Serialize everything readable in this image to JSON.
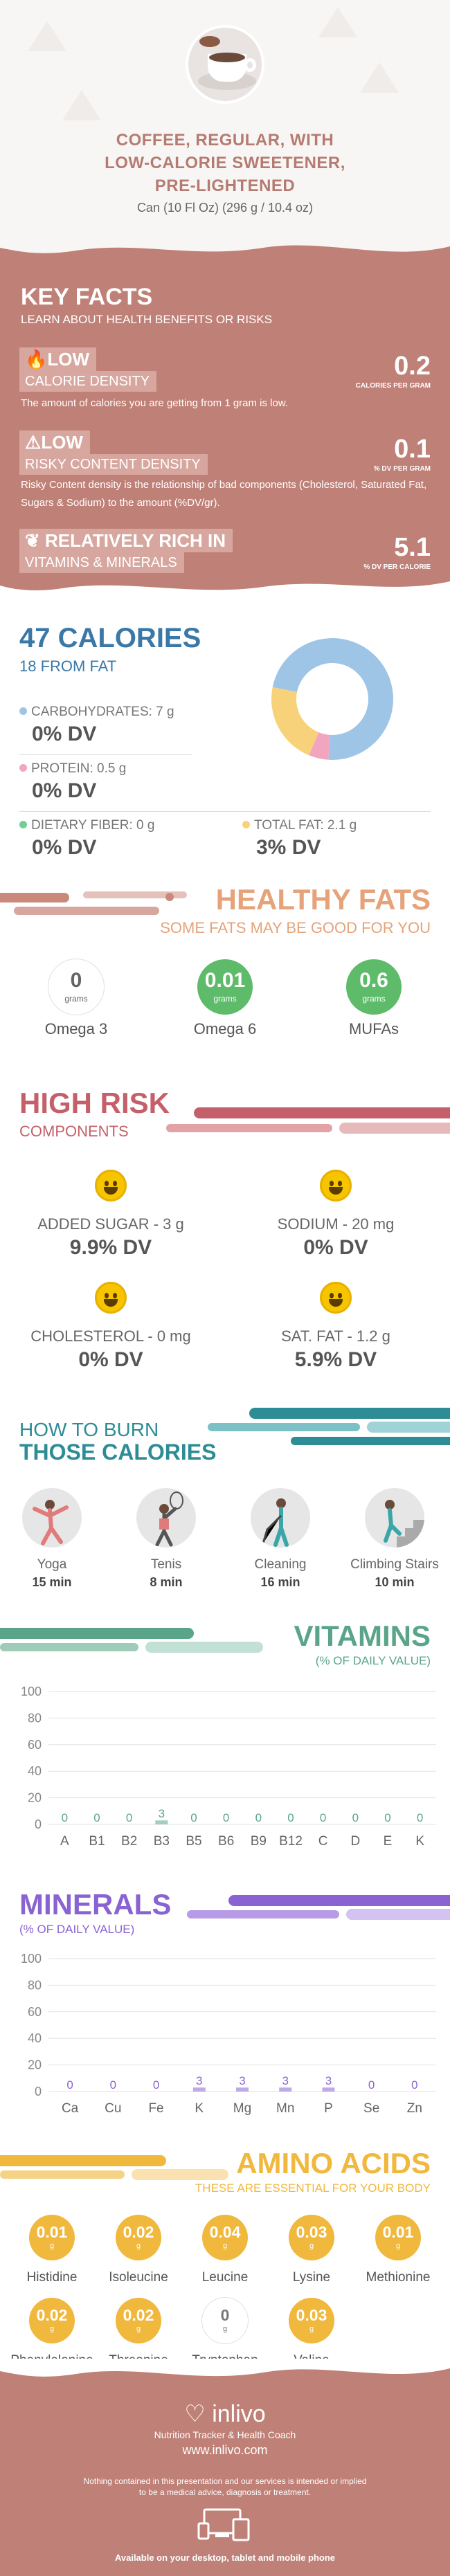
{
  "header": {
    "title_lines": [
      "COFFEE, REGULAR, WITH",
      "LOW-CALORIE SWEETENER,",
      "PRE-LIGHTENED"
    ],
    "serving": "Can (10 Fl Oz) (296 g / 10.4 oz)"
  },
  "key_facts": {
    "title": "KEY FACTS",
    "subtitle": "LEARN ABOUT HEALTH BENEFITS OR RISKS",
    "calorie_density": {
      "level": "LOW",
      "label": "CALORIE DENSITY",
      "value": "0.2",
      "unit": "CALORIES PER GRAM",
      "description": "The amount of calories you are getting from 1 gram is low."
    },
    "risky_content": {
      "level": "LOW",
      "label": "RISKY CONTENT DENSITY",
      "value": "0.1",
      "unit": "% DV PER GRAM",
      "description": "Risky Content density is the relationship of bad components (Cholesterol, Saturated Fat, Sugars & Sodium) to the amount (%DV/gr)."
    },
    "vitamins_minerals": {
      "level": "RELATIVELY RICH  IN",
      "label": "VITAMINS & MINERALS",
      "value": "5.1",
      "unit": "% DV PER CALORIE"
    }
  },
  "calories": {
    "title": "47 CALORIES",
    "from_fat": "18 FROM FAT",
    "carbohydrates": {
      "label": "CARBOHYDRATES: 7 g",
      "dv": "0% DV",
      "color": "#9ec5e6"
    },
    "protein": {
      "label": "PROTEIN: 0.5 g",
      "dv": "0% DV",
      "color": "#f2a5be"
    },
    "fiber": {
      "label": "DIETARY FIBER: 0 g",
      "dv": "0% DV",
      "color": "#6fcf97"
    },
    "fat": {
      "label": "TOTAL FAT: 2.1 g",
      "dv": "3% DV",
      "color": "#f7d27a"
    }
  },
  "chart_data": [
    {
      "type": "pie",
      "labels": [
        "Carbohydrates",
        "Protein",
        "Total Fat"
      ],
      "values": [
        7,
        0.5,
        2.1
      ],
      "colors": [
        "#9ec5e6",
        "#f2a5be",
        "#f7d27a"
      ]
    },
    {
      "type": "bar",
      "title": "VITAMINS",
      "subtitle": "(% OF DAILY VALUE)",
      "categories": [
        "A",
        "B1",
        "B2",
        "B3",
        "B5",
        "B6",
        "B9",
        "B12",
        "C",
        "D",
        "E",
        "K"
      ],
      "values": [
        0,
        0,
        0,
        3,
        0,
        0,
        0,
        0,
        0,
        0,
        0,
        0
      ],
      "ylim": [
        0,
        100
      ],
      "yticks": [
        0,
        20,
        40,
        60,
        80,
        100
      ],
      "color": "#5aa58a"
    },
    {
      "type": "bar",
      "title": "MINERALS",
      "subtitle": "(% OF DAILY VALUE)",
      "categories": [
        "Ca",
        "Cu",
        "Fe",
        "K",
        "Mg",
        "Mn",
        "P",
        "Se",
        "Zn"
      ],
      "values": [
        0,
        0,
        0,
        3,
        3,
        3,
        3,
        0,
        0
      ],
      "ylim": [
        0,
        100
      ],
      "yticks": [
        0,
        20,
        40,
        60,
        80,
        100
      ],
      "color": "#8a63d2"
    }
  ],
  "healthy_fats": {
    "title": "HEALTHY FATS",
    "subtitle": "SOME FATS MAY BE GOOD FOR YOU",
    "items": [
      {
        "value": "0",
        "unit": "grams",
        "label": "Omega 3",
        "color": "#ffffff"
      },
      {
        "value": "0.01",
        "unit": "grams",
        "label": "Omega 6",
        "color": "#5dbb6a"
      },
      {
        "value": "0.6",
        "unit": "grams",
        "label": "MUFAs",
        "color": "#5dbb6a"
      }
    ]
  },
  "high_risk": {
    "title": "HIGH RISK",
    "subtitle": "COMPONENTS",
    "items": [
      {
        "label": "ADDED SUGAR - 3 g",
        "dv": "9.9% DV"
      },
      {
        "label": "SODIUM - 20 mg",
        "dv": "0% DV"
      },
      {
        "label": "CHOLESTEROL - 0 mg",
        "dv": "0% DV"
      },
      {
        "label": "SAT. FAT - 1.2 g",
        "dv": "5.9% DV"
      }
    ]
  },
  "burn": {
    "title_line1": "HOW TO BURN",
    "title_line2": "THOSE CALORIES",
    "activities": [
      {
        "name": "Yoga",
        "minutes": "15 min"
      },
      {
        "name": "Tenis",
        "minutes": "8 min"
      },
      {
        "name": "Cleaning",
        "minutes": "16 min"
      },
      {
        "name": "Climbing Stairs",
        "minutes": "10 min"
      }
    ]
  },
  "amino_acids": {
    "title": "AMINO ACIDS",
    "subtitle": "THESE ARE ESSENTIAL FOR YOUR BODY",
    "items": [
      {
        "value": "0.01",
        "unit": "g",
        "label": "Histidine",
        "color": "#f0b83c"
      },
      {
        "value": "0.02",
        "unit": "g",
        "label": "Isoleucine",
        "color": "#f0b83c"
      },
      {
        "value": "0.04",
        "unit": "g",
        "label": "Leucine",
        "color": "#f0b83c"
      },
      {
        "value": "0.03",
        "unit": "g",
        "label": "Lysine",
        "color": "#f0b83c"
      },
      {
        "value": "0.01",
        "unit": "g",
        "label": "Methionine",
        "color": "#f0b83c"
      },
      {
        "value": "0.02",
        "unit": "g",
        "label": "Phenylalanine",
        "color": "#f0b83c"
      },
      {
        "value": "0.02",
        "unit": "g",
        "label": "Threonine",
        "color": "#f0b83c"
      },
      {
        "value": "0",
        "unit": "g",
        "label": "Tryptophan",
        "color": "#ffffff"
      },
      {
        "value": "0.03",
        "unit": "g",
        "label": "Valine",
        "color": "#f0b83c"
      }
    ]
  },
  "footer": {
    "brand": "inlivo",
    "tagline": "Nutrition Tracker & Health Coach",
    "url": "www.inlivo.com",
    "disclaimer_line1": "Nothing contained in this presentation and our services is intended or implied",
    "disclaimer_line2": "to be a medical advice, diagnosis or treatment.",
    "devices": "Available on your desktop, tablet and mobile phone"
  }
}
